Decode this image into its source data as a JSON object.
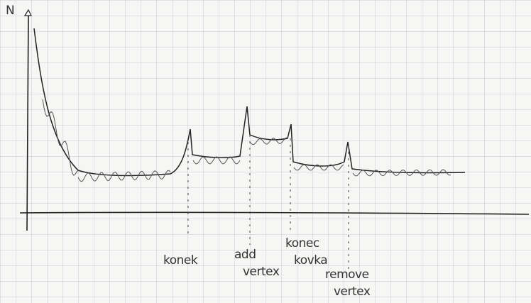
{
  "axis": {
    "label": "N"
  },
  "annotations": [
    {
      "lines": [
        "konek"
      ]
    },
    {
      "lines": [
        "add",
        "vertex"
      ]
    },
    {
      "lines": [
        "konec",
        "kovka"
      ]
    },
    {
      "lines": [
        "remove",
        "vertex"
      ]
    }
  ]
}
